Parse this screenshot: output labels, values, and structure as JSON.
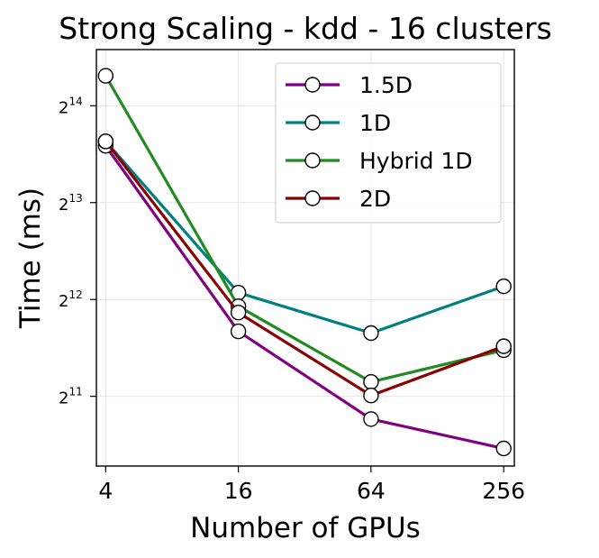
{
  "chart_data": {
    "type": "line",
    "title": "Strong Scaling - kdd - 16 clusters",
    "xlabel": "Number of GPUs",
    "ylabel": "Time (ms)",
    "x_scale": "log2",
    "y_scale": "log2",
    "x": [
      4,
      16,
      64,
      256
    ],
    "x_tick_labels": [
      "4",
      "16",
      "64",
      "256"
    ],
    "y_ticks": [
      {
        "value": 2048,
        "base": "2",
        "exp": "11"
      },
      {
        "value": 4096,
        "base": "2",
        "exp": "12"
      },
      {
        "value": 8192,
        "base": "2",
        "exp": "13"
      },
      {
        "value": 16384,
        "base": "2",
        "exp": "14"
      }
    ],
    "ylim_log2": [
      10.28,
      14.58
    ],
    "xlim_log2": [
      1.86,
      8.16
    ],
    "grid": true,
    "legend_position": "top-right",
    "series": [
      {
        "name": "1.5D",
        "color": "#800080",
        "values": [
          12300,
          3260,
          1740,
          1410
        ]
      },
      {
        "name": "1D",
        "color": "#008080",
        "values": [
          12700,
          4300,
          3220,
          4500
        ]
      },
      {
        "name": "Hybrid 1D",
        "color": "#228b22",
        "values": [
          20300,
          3900,
          2270,
          2850
        ]
      },
      {
        "name": "2D",
        "color": "#8b0000",
        "values": [
          12700,
          3730,
          2060,
          2930
        ]
      }
    ]
  }
}
